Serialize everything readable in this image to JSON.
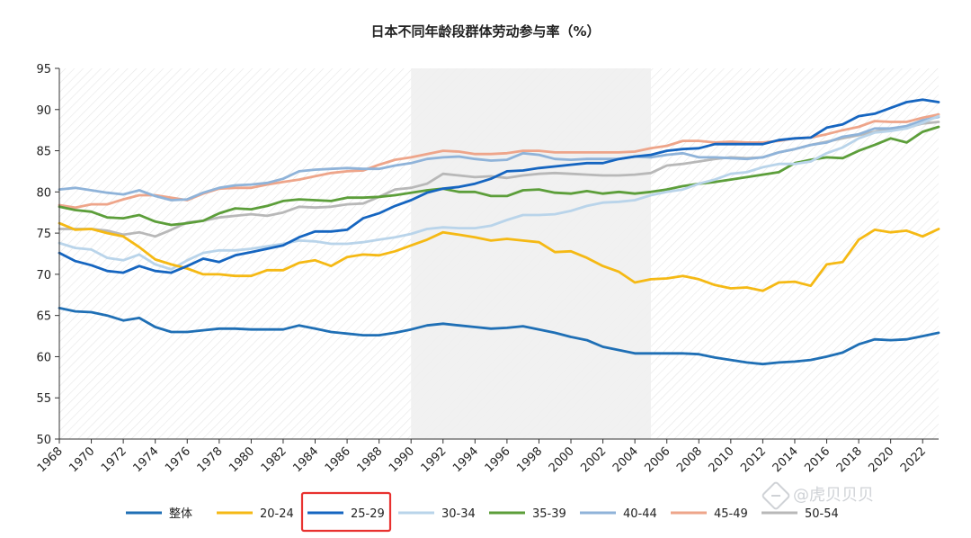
{
  "watermark": "@虎贝贝贝",
  "chart_data": {
    "type": "line",
    "title": "日本不同年龄段群体劳动参与率（%）",
    "xlabel": "",
    "ylabel": "",
    "xlim": [
      1968,
      2023
    ],
    "ylim": [
      50,
      95
    ],
    "yticks": [
      50,
      55,
      60,
      65,
      70,
      75,
      80,
      85,
      90,
      95
    ],
    "xticks": [
      1968,
      1970,
      1972,
      1974,
      1976,
      1978,
      1980,
      1982,
      1984,
      1986,
      1988,
      1990,
      1992,
      1994,
      1996,
      1998,
      2000,
      2002,
      2004,
      2006,
      2008,
      2010,
      2012,
      2014,
      2016,
      2018,
      2020,
      2022
    ],
    "shaded_period": [
      1990,
      2005
    ],
    "highlighted_legend_entry": "25-29",
    "highlight_color": "#e8312f",
    "grid": false,
    "legend_position": "bottom",
    "series": [
      {
        "name": "整体",
        "color": "#1f6fb5",
        "x": [
          1968,
          1969,
          1970,
          1971,
          1972,
          1973,
          1974,
          1975,
          1976,
          1977,
          1978,
          1979,
          1980,
          1981,
          1982,
          1983,
          1984,
          1985,
          1986,
          1987,
          1988,
          1989,
          1990,
          1991,
          1992,
          1993,
          1994,
          1995,
          1996,
          1997,
          1998,
          1999,
          2000,
          2001,
          2002,
          2003,
          2004,
          2005,
          2006,
          2007,
          2008,
          2009,
          2010,
          2011,
          2012,
          2013,
          2014,
          2015,
          2016,
          2017,
          2018,
          2019,
          2020,
          2021,
          2022,
          2023
        ],
        "y": [
          65.9,
          65.5,
          65.4,
          65.0,
          64.4,
          64.7,
          63.6,
          63.0,
          63.0,
          63.2,
          63.4,
          63.4,
          63.3,
          63.3,
          63.3,
          63.8,
          63.4,
          63.0,
          62.8,
          62.6,
          62.6,
          62.9,
          63.3,
          63.8,
          64.0,
          63.8,
          63.6,
          63.4,
          63.5,
          63.7,
          63.3,
          62.9,
          62.4,
          62.0,
          61.2,
          60.8,
          60.4,
          60.4,
          60.4,
          60.4,
          60.3,
          59.9,
          59.6,
          59.3,
          59.1,
          59.3,
          59.4,
          59.6,
          60.0,
          60.5,
          61.5,
          62.1,
          62.0,
          62.1,
          62.5,
          62.9
        ]
      },
      {
        "name": "20-24",
        "color": "#f5b914",
        "x": [
          1968,
          1969,
          1970,
          1971,
          1972,
          1973,
          1974,
          1975,
          1976,
          1977,
          1978,
          1979,
          1980,
          1981,
          1982,
          1983,
          1984,
          1985,
          1986,
          1987,
          1988,
          1989,
          1990,
          1991,
          1992,
          1993,
          1994,
          1995,
          1996,
          1997,
          1998,
          1999,
          2000,
          2001,
          2002,
          2003,
          2004,
          2005,
          2006,
          2007,
          2008,
          2009,
          2010,
          2011,
          2012,
          2013,
          2014,
          2015,
          2016,
          2017,
          2018,
          2019,
          2020,
          2021,
          2022,
          2023
        ],
        "y": [
          76.2,
          75.4,
          75.5,
          75.0,
          74.6,
          73.3,
          71.8,
          71.2,
          70.7,
          70.0,
          70.0,
          69.8,
          69.8,
          70.5,
          70.5,
          71.4,
          71.7,
          71.0,
          72.1,
          72.4,
          72.3,
          72.8,
          73.5,
          74.2,
          75.1,
          74.8,
          74.5,
          74.1,
          74.3,
          74.1,
          73.9,
          72.7,
          72.8,
          72.0,
          71.0,
          70.3,
          69.0,
          69.4,
          69.5,
          69.8,
          69.4,
          68.7,
          68.3,
          68.4,
          68.0,
          69.0,
          69.1,
          68.6,
          71.2,
          71.5,
          74.2,
          75.4,
          75.1,
          75.3,
          74.6,
          75.5
        ]
      },
      {
        "name": "25-29",
        "color": "#1565c0",
        "x": [
          1968,
          1969,
          1970,
          1971,
          1972,
          1973,
          1974,
          1975,
          1976,
          1977,
          1978,
          1979,
          1980,
          1981,
          1982,
          1983,
          1984,
          1985,
          1986,
          1987,
          1988,
          1989,
          1990,
          1991,
          1992,
          1993,
          1994,
          1995,
          1996,
          1997,
          1998,
          1999,
          2000,
          2001,
          2002,
          2003,
          2004,
          2005,
          2006,
          2007,
          2008,
          2009,
          2010,
          2011,
          2012,
          2013,
          2014,
          2015,
          2016,
          2017,
          2018,
          2019,
          2020,
          2021,
          2022,
          2023
        ],
        "y": [
          72.6,
          71.6,
          71.1,
          70.4,
          70.2,
          71.0,
          70.4,
          70.2,
          71.0,
          71.9,
          71.5,
          72.3,
          72.7,
          73.1,
          73.5,
          74.5,
          75.2,
          75.2,
          75.4,
          76.8,
          77.4,
          78.3,
          79.0,
          79.9,
          80.4,
          80.6,
          81.0,
          81.6,
          82.5,
          82.6,
          82.9,
          83.1,
          83.3,
          83.5,
          83.5,
          84.0,
          84.3,
          84.5,
          85.0,
          85.2,
          85.3,
          85.8,
          85.8,
          85.8,
          85.8,
          86.3,
          86.5,
          86.6,
          87.8,
          88.2,
          89.2,
          89.5,
          90.2,
          90.9,
          91.2,
          90.9
        ]
      },
      {
        "name": "30-34",
        "color": "#b9d4ea",
        "x": [
          1968,
          1969,
          1970,
          1971,
          1972,
          1973,
          1974,
          1975,
          1976,
          1977,
          1978,
          1979,
          1980,
          1981,
          1982,
          1983,
          1984,
          1985,
          1986,
          1987,
          1988,
          1989,
          1990,
          1991,
          1992,
          1993,
          1994,
          1995,
          1996,
          1997,
          1998,
          1999,
          2000,
          2001,
          2002,
          2003,
          2004,
          2005,
          2006,
          2007,
          2008,
          2009,
          2010,
          2011,
          2012,
          2013,
          2014,
          2015,
          2016,
          2017,
          2018,
          2019,
          2020,
          2021,
          2022,
          2023
        ],
        "y": [
          73.8,
          73.2,
          73.0,
          72.0,
          71.7,
          72.4,
          71.2,
          70.6,
          71.7,
          72.6,
          72.9,
          72.9,
          73.1,
          73.4,
          73.7,
          74.1,
          74.0,
          73.7,
          73.7,
          73.9,
          74.2,
          74.5,
          74.9,
          75.5,
          75.7,
          75.6,
          75.6,
          75.9,
          76.6,
          77.2,
          77.2,
          77.3,
          77.7,
          78.3,
          78.7,
          78.8,
          79.0,
          79.6,
          80.0,
          80.3,
          81.0,
          81.5,
          82.2,
          82.4,
          83.0,
          83.4,
          83.4,
          83.7,
          84.7,
          85.4,
          86.5,
          87.2,
          87.4,
          87.7,
          88.4,
          89.2
        ]
      },
      {
        "name": "35-39",
        "color": "#5c9e3a",
        "x": [
          1968,
          1969,
          1970,
          1971,
          1972,
          1973,
          1974,
          1975,
          1976,
          1977,
          1978,
          1979,
          1980,
          1981,
          1982,
          1983,
          1984,
          1985,
          1986,
          1987,
          1988,
          1989,
          1990,
          1991,
          1992,
          1993,
          1994,
          1995,
          1996,
          1997,
          1998,
          1999,
          2000,
          2001,
          2002,
          2003,
          2004,
          2005,
          2006,
          2007,
          2008,
          2009,
          2010,
          2011,
          2012,
          2013,
          2014,
          2015,
          2016,
          2017,
          2018,
          2019,
          2020,
          2021,
          2022,
          2023
        ],
        "y": [
          78.2,
          77.8,
          77.6,
          76.9,
          76.8,
          77.2,
          76.4,
          76.0,
          76.2,
          76.5,
          77.4,
          78.0,
          77.9,
          78.3,
          78.9,
          79.1,
          79.0,
          78.9,
          79.3,
          79.3,
          79.4,
          79.6,
          79.9,
          80.2,
          80.4,
          80.0,
          80.0,
          79.5,
          79.5,
          80.2,
          80.3,
          79.9,
          79.8,
          80.1,
          79.8,
          80.0,
          79.8,
          80.0,
          80.3,
          80.7,
          81.0,
          81.2,
          81.5,
          81.8,
          82.1,
          82.4,
          83.5,
          83.9,
          84.2,
          84.1,
          85.0,
          85.7,
          86.5,
          86.0,
          87.3,
          87.9
        ]
      },
      {
        "name": "40-44",
        "color": "#8fb3d9",
        "x": [
          1968,
          1969,
          1970,
          1971,
          1972,
          1973,
          1974,
          1975,
          1976,
          1977,
          1978,
          1979,
          1980,
          1981,
          1982,
          1983,
          1984,
          1985,
          1986,
          1987,
          1988,
          1989,
          1990,
          1991,
          1992,
          1993,
          1994,
          1995,
          1996,
          1997,
          1998,
          1999,
          2000,
          2001,
          2002,
          2003,
          2004,
          2005,
          2006,
          2007,
          2008,
          2009,
          2010,
          2011,
          2012,
          2013,
          2014,
          2015,
          2016,
          2017,
          2018,
          2019,
          2020,
          2021,
          2022,
          2023
        ],
        "y": [
          80.3,
          80.5,
          80.2,
          79.9,
          79.7,
          80.2,
          79.5,
          79.0,
          79.1,
          79.9,
          80.5,
          80.8,
          80.9,
          81.1,
          81.6,
          82.5,
          82.7,
          82.8,
          82.9,
          82.8,
          82.8,
          83.2,
          83.5,
          84.0,
          84.2,
          84.3,
          84.0,
          83.8,
          83.9,
          84.7,
          84.5,
          84.0,
          83.9,
          84.0,
          84.0,
          84.0,
          84.3,
          84.2,
          84.5,
          84.7,
          84.2,
          84.2,
          84.1,
          84.0,
          84.2,
          84.8,
          85.2,
          85.7,
          86.0,
          86.7,
          87.0,
          87.7,
          87.7,
          88.0,
          88.7,
          89.1
        ]
      },
      {
        "name": "45-49",
        "color": "#eea58a",
        "x": [
          1968,
          1969,
          1970,
          1971,
          1972,
          1973,
          1974,
          1975,
          1976,
          1977,
          1978,
          1979,
          1980,
          1981,
          1982,
          1983,
          1984,
          1985,
          1986,
          1987,
          1988,
          1989,
          1990,
          1991,
          1992,
          1993,
          1994,
          1995,
          1996,
          1997,
          1998,
          1999,
          2000,
          2001,
          2002,
          2003,
          2004,
          2005,
          2006,
          2007,
          2008,
          2009,
          2010,
          2011,
          2012,
          2013,
          2014,
          2015,
          2016,
          2017,
          2018,
          2019,
          2020,
          2021,
          2022,
          2023
        ],
        "y": [
          78.4,
          78.1,
          78.5,
          78.5,
          79.1,
          79.6,
          79.6,
          79.3,
          79.0,
          79.8,
          80.4,
          80.5,
          80.5,
          80.9,
          81.2,
          81.5,
          81.9,
          82.3,
          82.5,
          82.6,
          83.3,
          83.9,
          84.2,
          84.6,
          85.0,
          84.9,
          84.6,
          84.6,
          84.7,
          85.0,
          85.0,
          84.8,
          84.8,
          84.8,
          84.8,
          84.8,
          84.9,
          85.3,
          85.6,
          86.2,
          86.2,
          86.0,
          86.1,
          86.0,
          86.0,
          86.2,
          86.5,
          86.6,
          87.0,
          87.5,
          87.9,
          88.6,
          88.5,
          88.5,
          89.0,
          89.4
        ]
      },
      {
        "name": "50-54",
        "color": "#b8b8b8",
        "x": [
          1968,
          1969,
          1970,
          1971,
          1972,
          1973,
          1974,
          1975,
          1976,
          1977,
          1978,
          1979,
          1980,
          1981,
          1982,
          1983,
          1984,
          1985,
          1986,
          1987,
          1988,
          1989,
          1990,
          1991,
          1992,
          1993,
          1994,
          1995,
          1996,
          1997,
          1998,
          1999,
          2000,
          2001,
          2002,
          2003,
          2004,
          2005,
          2006,
          2007,
          2008,
          2009,
          2010,
          2011,
          2012,
          2013,
          2014,
          2015,
          2016,
          2017,
          2018,
          2019,
          2020,
          2021,
          2022,
          2023
        ],
        "y": [
          75.5,
          75.5,
          75.5,
          75.3,
          74.8,
          75.1,
          74.6,
          75.4,
          76.3,
          76.5,
          76.9,
          77.1,
          77.3,
          77.1,
          77.5,
          78.2,
          78.1,
          78.2,
          78.5,
          78.6,
          79.4,
          80.3,
          80.5,
          81.0,
          82.2,
          82.0,
          81.8,
          81.9,
          81.7,
          82.0,
          82.2,
          82.3,
          82.2,
          82.1,
          82.0,
          82.0,
          82.1,
          82.3,
          83.2,
          83.4,
          83.7,
          84.0,
          84.2,
          84.1,
          84.2,
          84.8,
          85.2,
          85.7,
          86.1,
          86.5,
          86.9,
          87.3,
          87.7,
          87.8,
          88.3,
          88.5
        ]
      }
    ]
  }
}
